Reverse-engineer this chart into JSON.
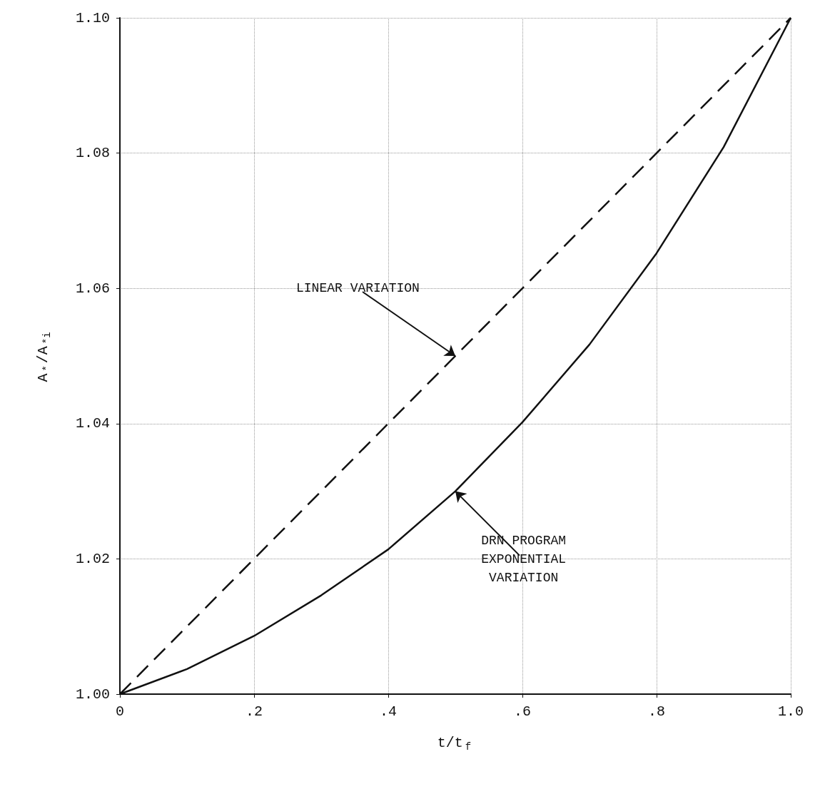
{
  "chart_data": {
    "type": "line",
    "xlabel": "t/t$_{f}$",
    "ylabel": "A$_{*}$/A$_{*i}$",
    "xlim": [
      0,
      1.0
    ],
    "xticks": [
      0,
      {
        "value": 0.2,
        "label": ".2"
      },
      {
        "value": 0.4,
        "label": ".4"
      },
      {
        "value": 0.6,
        "label": ".6"
      },
      {
        "value": 0.8,
        "label": ".8"
      },
      {
        "value": 1.0,
        "label": "1.0"
      }
    ],
    "ylim": [
      1.0,
      1.1
    ],
    "yticks": [
      {
        "value": 1.0,
        "label": "1.00"
      },
      {
        "value": 1.02,
        "label": "1.02"
      },
      {
        "value": 1.04,
        "label": "1.04"
      },
      {
        "value": 1.06,
        "label": "1.06"
      },
      {
        "value": 1.08,
        "label": "1.08"
      },
      {
        "value": 1.1,
        "label": "1.10"
      }
    ],
    "grid": true,
    "marker": "none",
    "series": [
      {
        "color": "#111111",
        "line_style": "dashed",
        "x": [
          0,
          1.0
        ],
        "values": [
          1.0,
          1.1
        ]
      },
      {
        "color": "#111111",
        "line_style": "solid",
        "x": [
          0,
          0.1,
          0.2,
          0.3,
          0.4,
          0.5,
          0.6,
          0.7,
          0.8,
          0.9,
          1.0
        ],
        "values": [
          1.0,
          1.0037,
          1.0086,
          1.0146,
          1.0214,
          1.03,
          1.0402,
          1.0517,
          1.0652,
          1.0809,
          1.1
        ]
      }
    ],
    "annotations": [
      {
        "text": "LINEAR VARIATION",
        "x": 0.5,
        "y": 1.05
      },
      {
        "text": "DRN PROGRAM\nEXPONENTIAL\nVARIATION",
        "x": 0.5,
        "y": 1.03
      }
    ]
  }
}
